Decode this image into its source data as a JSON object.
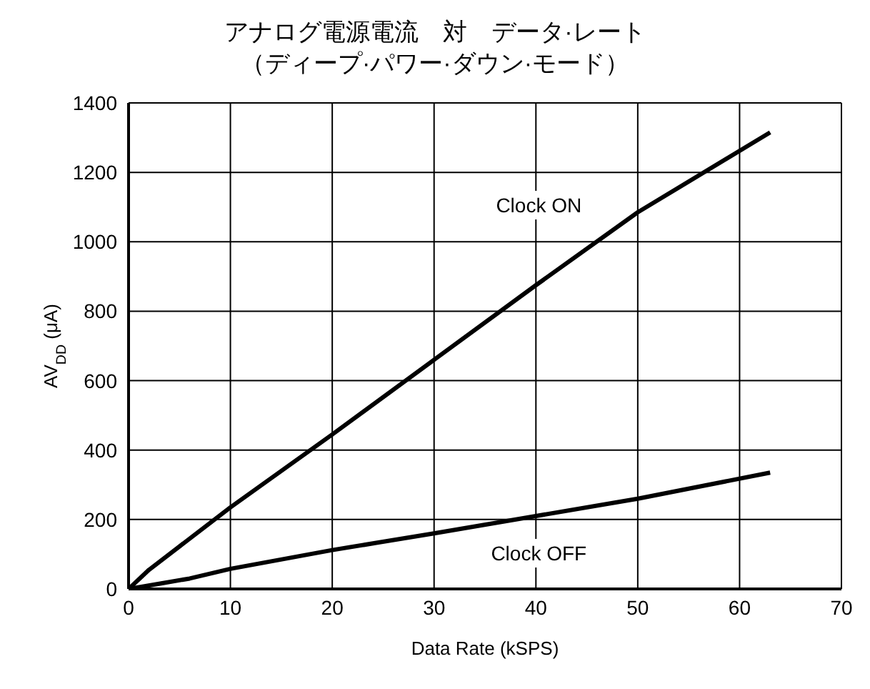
{
  "chart_data": {
    "type": "line",
    "title": "アナログ電源電流　対　データ·レート",
    "subtitle": "（ディープ·パワー·ダウン·モード）",
    "xlabel": "Data Rate (kSPS)",
    "ylabel": "AV$_{DD}$ (μA)",
    "xlim": [
      0,
      70
    ],
    "xticks": [
      0,
      10,
      20,
      30,
      40,
      50,
      60,
      70
    ],
    "ylim": [
      0,
      1400
    ],
    "yticks": [
      0,
      200,
      400,
      600,
      800,
      1000,
      1200,
      1400
    ],
    "grid": true,
    "legend": false,
    "marker": "none",
    "line_style": "solid",
    "series": [
      {
        "name": "Clock ON",
        "color": "#000000",
        "x": [
          0,
          2,
          10,
          20,
          30,
          40,
          50,
          63
        ],
        "values": [
          0,
          55,
          235,
          445,
          660,
          875,
          1085,
          1315
        ]
      },
      {
        "name": "Clock OFF",
        "color": "#000000",
        "x": [
          0,
          3,
          6,
          10,
          20,
          30,
          40,
          50,
          63
        ],
        "values": [
          0,
          15,
          30,
          58,
          112,
          160,
          210,
          260,
          335
        ]
      }
    ]
  }
}
